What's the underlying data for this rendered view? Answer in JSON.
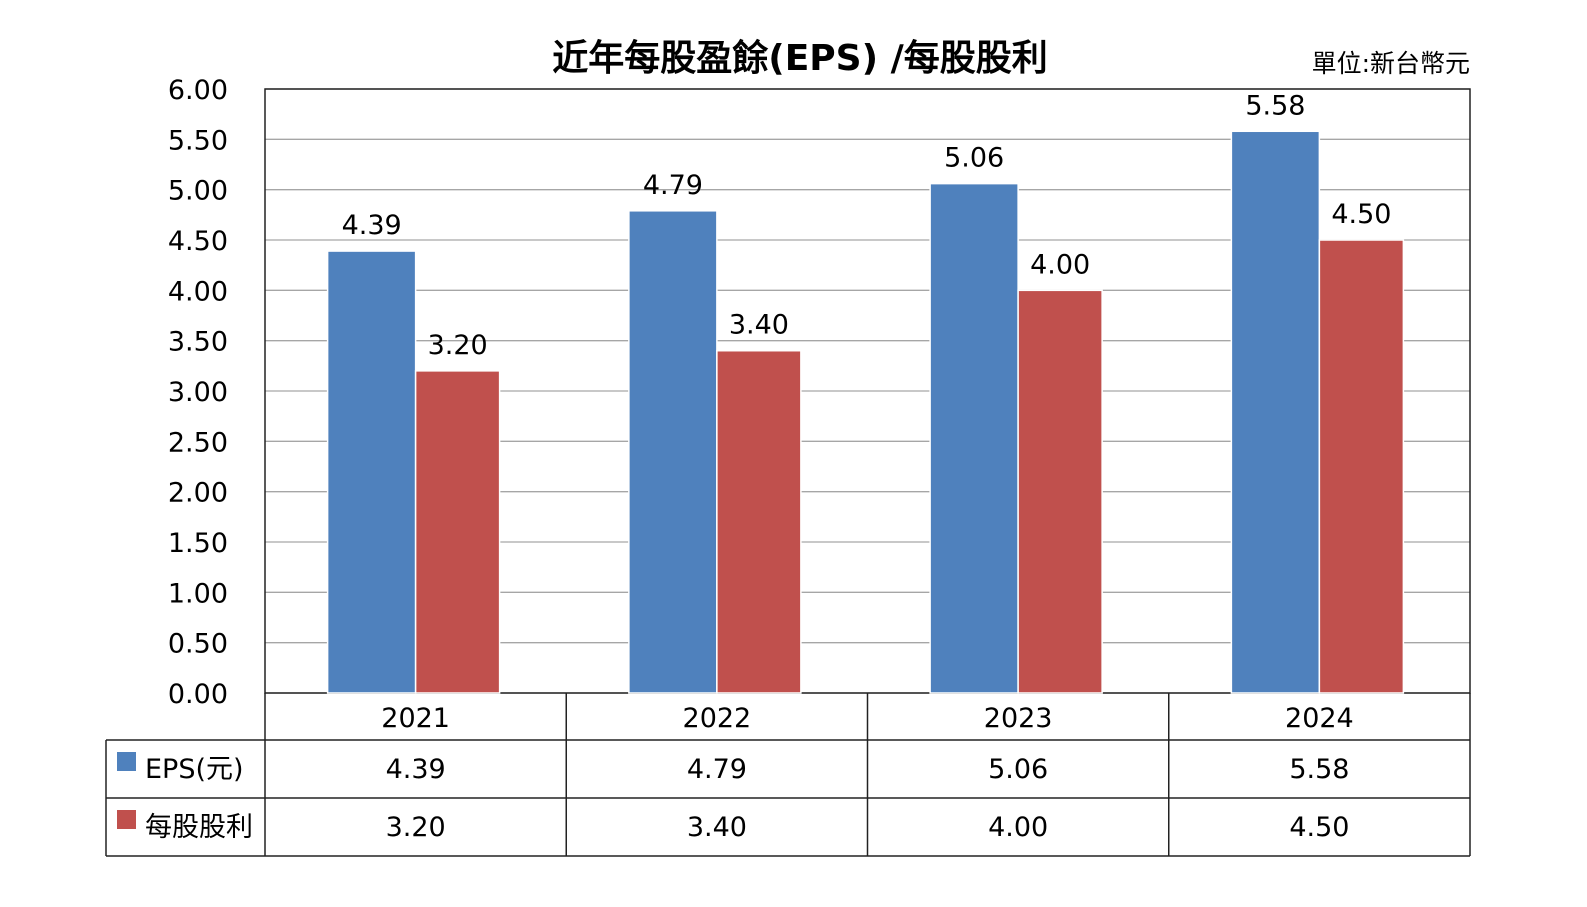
{
  "title": "近年每股盈餘(EPS) /每股股利",
  "unit_label": "單位:新台幣元",
  "chart_data": {
    "type": "bar",
    "title": "近年每股盈餘(EPS) /每股股利",
    "xlabel": "",
    "ylabel": "",
    "categories": [
      "2021",
      "2022",
      "2023",
      "2024"
    ],
    "series": [
      {
        "name": "EPS(元)",
        "color": "#4f81bd",
        "values": [
          4.39,
          4.79,
          5.06,
          5.58
        ],
        "labels": [
          "4.39",
          "4.79",
          "5.06",
          "5.58"
        ]
      },
      {
        "name": "每股股利",
        "color": "#c0504d",
        "values": [
          3.2,
          3.4,
          4.0,
          4.5
        ],
        "labels": [
          "3.20",
          "3.40",
          "4.00",
          "4.50"
        ]
      }
    ],
    "ylim": [
      0,
      6
    ],
    "yticks": [
      "0.00",
      "0.50",
      "1.00",
      "1.50",
      "2.00",
      "2.50",
      "3.00",
      "3.50",
      "4.00",
      "4.50",
      "5.00",
      "5.50",
      "6.00"
    ],
    "grid": true,
    "legend": "data-table-below"
  }
}
